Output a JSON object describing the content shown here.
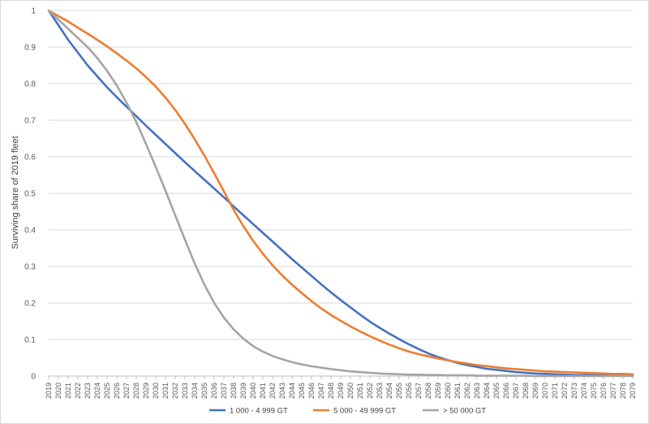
{
  "chart_data": {
    "type": "line",
    "title": "",
    "xlabel": "",
    "ylabel": "Surviving share of 2019 fleet",
    "ylim": [
      0,
      1
    ],
    "yticks": [
      "0",
      "0.1",
      "0.2",
      "0.3",
      "0.4",
      "0.5",
      "0.6",
      "0.7",
      "0.8",
      "0.9",
      "1"
    ],
    "grid": true,
    "legend_position": "bottom",
    "x": [
      "2019",
      "2020",
      "2021",
      "2022",
      "2023",
      "2024",
      "2025",
      "2026",
      "2027",
      "2028",
      "2029",
      "2030",
      "2031",
      "2032",
      "2033",
      "2034",
      "2035",
      "2036",
      "2037",
      "2038",
      "2039",
      "2040",
      "2041",
      "2042",
      "2043",
      "2044",
      "2045",
      "2046",
      "2047",
      "2048",
      "2049",
      "2050",
      "2051",
      "2052",
      "2053",
      "2054",
      "2055",
      "2056",
      "2057",
      "2058",
      "2059",
      "2060",
      "2061",
      "2062",
      "2063",
      "2064",
      "2065",
      "2066",
      "2067",
      "2068",
      "2069",
      "2070",
      "2071",
      "2072",
      "2073",
      "2074",
      "2075",
      "2076",
      "2077",
      "2078",
      "2079"
    ],
    "series": [
      {
        "name": "1 000 - 4 999 GT",
        "color": "#4472C4",
        "values": [
          1.0,
          0.96,
          0.92,
          0.885,
          0.85,
          0.82,
          0.79,
          0.763,
          0.737,
          0.711,
          0.685,
          0.66,
          0.635,
          0.61,
          0.585,
          0.561,
          0.537,
          0.513,
          0.489,
          0.464,
          0.44,
          0.416,
          0.392,
          0.368,
          0.344,
          0.32,
          0.297,
          0.274,
          0.251,
          0.229,
          0.208,
          0.188,
          0.168,
          0.149,
          0.132,
          0.116,
          0.101,
          0.087,
          0.074,
          0.062,
          0.052,
          0.044,
          0.036,
          0.03,
          0.025,
          0.02,
          0.017,
          0.014,
          0.011,
          0.009,
          0.007,
          0.006,
          0.005,
          0.004,
          0.003,
          0.003,
          0.002,
          0.002,
          0.002,
          0.001,
          0.001
        ]
      },
      {
        "name": "5 000 - 49 999 GT",
        "color": "#ED7D31",
        "values": [
          1.0,
          0.985,
          0.97,
          0.953,
          0.937,
          0.92,
          0.902,
          0.883,
          0.863,
          0.842,
          0.818,
          0.792,
          0.762,
          0.728,
          0.69,
          0.648,
          0.603,
          0.555,
          0.505,
          0.455,
          0.41,
          0.37,
          0.335,
          0.303,
          0.275,
          0.25,
          0.227,
          0.205,
          0.185,
          0.167,
          0.151,
          0.136,
          0.122,
          0.109,
          0.097,
          0.086,
          0.076,
          0.067,
          0.06,
          0.054,
          0.048,
          0.043,
          0.038,
          0.034,
          0.03,
          0.027,
          0.024,
          0.021,
          0.019,
          0.017,
          0.015,
          0.013,
          0.012,
          0.011,
          0.01,
          0.009,
          0.008,
          0.007,
          0.006,
          0.006,
          0.005
        ]
      },
      {
        "name": "> 50 000 GT",
        "color": "#A5A5A5",
        "values": [
          1.0,
          0.975,
          0.95,
          0.925,
          0.9,
          0.87,
          0.835,
          0.795,
          0.748,
          0.695,
          0.635,
          0.572,
          0.507,
          0.44,
          0.373,
          0.308,
          0.25,
          0.2,
          0.16,
          0.128,
          0.102,
          0.082,
          0.067,
          0.055,
          0.046,
          0.038,
          0.032,
          0.027,
          0.023,
          0.019,
          0.016,
          0.013,
          0.011,
          0.009,
          0.007,
          0.006,
          0.005,
          0.004,
          0.004,
          0.003,
          0.003,
          0.002,
          0.002,
          0.002,
          0.001,
          0.001,
          0.001,
          0.001,
          0.001,
          0.001,
          0.0,
          0.0,
          0.0,
          0.0,
          0.0,
          0.0,
          0.0,
          0.0,
          0.0,
          0.0,
          0.0
        ]
      }
    ]
  }
}
